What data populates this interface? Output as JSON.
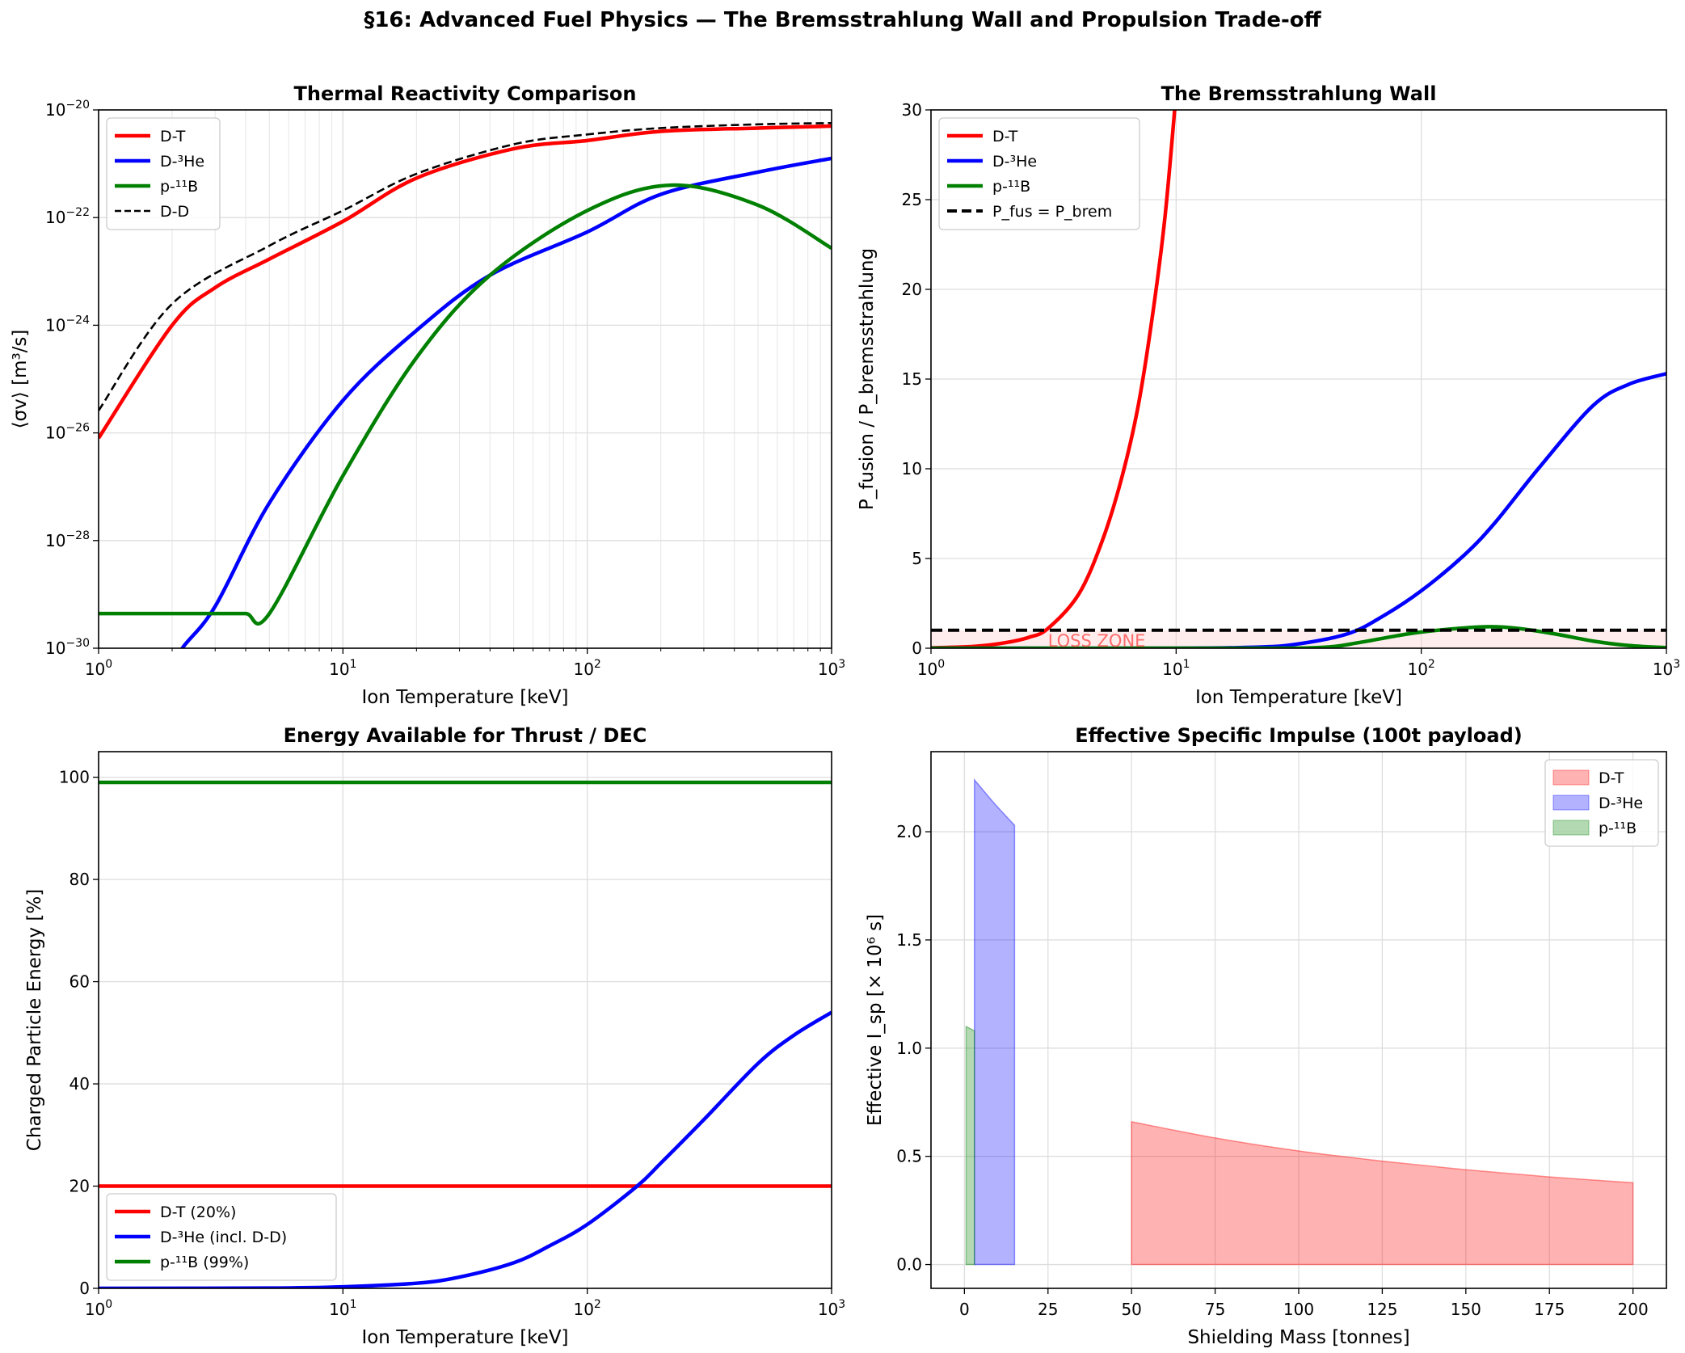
{
  "suptitle": "§16: Advanced Fuel Physics — The Bremsstrahlung Wall and Propulsion Trade-off",
  "chart_data": [
    {
      "type": "line",
      "title": "Thermal Reactivity Comparison",
      "xlabel": "Ion Temperature [keV]",
      "ylabel": "⟨σv⟩ [m³/s]",
      "xscale": "log",
      "yscale": "log",
      "xlim": [
        1,
        1000
      ],
      "ylim": [
        1e-30,
        1e-20
      ],
      "xticks": [
        1,
        10,
        100,
        1000
      ],
      "xticklabels": [
        "10^0",
        "10^1",
        "10^2",
        "10^3"
      ],
      "yticks": [
        1e-30,
        1e-28,
        1e-26,
        1e-24,
        1e-22,
        1e-20
      ],
      "yticklabels": [
        "10^−30",
        "10^−28",
        "10^−26",
        "10^−24",
        "10^−22",
        "10^−20"
      ],
      "grid": true,
      "minor_grid": true,
      "legend": "upper-left",
      "series": [
        {
          "name": "D-T",
          "color": "#ff0000",
          "dash": "solid",
          "x": [
            1,
            2,
            3,
            5,
            10,
            20,
            50,
            100,
            200,
            500,
            1000
          ],
          "y": [
            8e-27,
            1e-24,
            5e-24,
            1.7e-23,
            8.5e-23,
            5.4e-22,
            1.9e-21,
            2.7e-21,
            4e-21,
            4.6e-21,
            5e-21
          ]
        },
        {
          "name": "D-³He",
          "color": "#0000ff",
          "dash": "solid",
          "x": [
            1.9,
            2.2,
            3,
            5,
            10,
            20,
            40,
            100,
            200,
            500,
            1000
          ],
          "y": [
            3e-31,
            1e-30,
            6e-30,
            5e-28,
            4e-26,
            8e-25,
            8.5e-24,
            5.4e-23,
            2.7e-22,
            7e-22,
            1.26e-21
          ]
        },
        {
          "name": "p-¹¹B",
          "color": "#008000",
          "dash": "solid",
          "x": [
            1,
            2,
            3,
            4,
            5,
            10,
            20,
            40,
            100,
            220,
            500,
            1000
          ],
          "y": [
            4.4e-30,
            4.4e-30,
            4.4e-30,
            4.4e-30,
            4.4e-30,
            1.6e-27,
            2.5e-25,
            8.5e-24,
            1.35e-22,
            4e-22,
            1.7e-22,
            2.7e-23
          ]
        },
        {
          "name": "D-D",
          "color": "#000000",
          "dash": "dashed",
          "x": [
            1,
            2,
            5,
            10,
            20,
            50,
            100,
            200,
            500,
            1000
          ],
          "y": [
            2.6e-26,
            2.5e-24,
            3e-23,
            1.35e-22,
            6.5e-22,
            2.3e-21,
            3.5e-21,
            4.6e-21,
            5.4e-21,
            5.7e-21
          ]
        }
      ]
    },
    {
      "type": "line",
      "title": "The Bremsstrahlung Wall",
      "xlabel": "Ion Temperature [keV]",
      "ylabel": "P_fusion / P_bremsstrahlung",
      "xscale": "log",
      "yscale": "linear",
      "xlim": [
        1,
        1000
      ],
      "ylim": [
        0,
        30
      ],
      "xticks": [
        1,
        10,
        100,
        1000
      ],
      "xticklabels": [
        "10^0",
        "10^1",
        "10^2",
        "10^3"
      ],
      "yticks": [
        0,
        5,
        10,
        15,
        20,
        25,
        30
      ],
      "yticklabels": [
        "0",
        "5",
        "10",
        "15",
        "20",
        "25",
        "30"
      ],
      "grid": true,
      "minor_grid": false,
      "legend": "upper-left",
      "fill": {
        "x": [
          1,
          1000
        ],
        "y": [
          0,
          1
        ],
        "color": "#ffcccc"
      },
      "annotations": [
        {
          "text": "LOSS ZONE",
          "x": 3,
          "y": 0.45,
          "color": "#ff5555"
        }
      ],
      "series": [
        {
          "name": "D-T",
          "color": "#ff0000",
          "dash": "solid",
          "x": [
            1,
            1.5,
            2,
            2.5,
            3,
            4,
            5,
            6,
            7,
            8,
            9,
            10,
            10.5
          ],
          "y": [
            0.02,
            0.1,
            0.3,
            0.6,
            1.1,
            3,
            6,
            9.5,
            13.5,
            18.5,
            24,
            31,
            35
          ]
        },
        {
          "name": "D-³He",
          "color": "#0000ff",
          "dash": "solid",
          "x": [
            1,
            10,
            20,
            30,
            50,
            70,
            100,
            150,
            200,
            300,
            500,
            700,
            1000
          ],
          "y": [
            0,
            0,
            0.05,
            0.2,
            0.8,
            1.8,
            3.2,
            5.2,
            7,
            10,
            13.5,
            14.7,
            15.3
          ]
        },
        {
          "name": "p-¹¹B",
          "color": "#008000",
          "dash": "solid",
          "x": [
            1,
            20,
            40,
            55,
            80,
            100,
            140,
            190,
            250,
            350,
            500,
            700,
            1000
          ],
          "y": [
            0,
            0,
            0.05,
            0.3,
            0.7,
            0.9,
            1.1,
            1.2,
            1.1,
            0.8,
            0.4,
            0.15,
            0.03
          ]
        },
        {
          "name": "P_fus = P_brem",
          "color": "#000000",
          "dash": "dashed",
          "x": [
            1,
            1000
          ],
          "y": [
            1,
            1
          ]
        }
      ]
    },
    {
      "type": "line",
      "title": "Energy Available for Thrust / DEC",
      "xlabel": "Ion Temperature [keV]",
      "ylabel": "Charged Particle Energy [%]",
      "xscale": "log",
      "yscale": "linear",
      "xlim": [
        1,
        1000
      ],
      "ylim": [
        0,
        105
      ],
      "xticks": [
        1,
        10,
        100,
        1000
      ],
      "xticklabels": [
        "10^0",
        "10^1",
        "10^2",
        "10^3"
      ],
      "yticks": [
        0,
        20,
        40,
        60,
        80,
        100
      ],
      "yticklabels": [
        "0",
        "20",
        "40",
        "60",
        "80",
        "100"
      ],
      "grid": true,
      "minor_grid": false,
      "legend": "lower-left",
      "series": [
        {
          "name": "D-T (20%)",
          "color": "#ff0000",
          "dash": "solid",
          "x": [
            1,
            1000
          ],
          "y": [
            20,
            20
          ]
        },
        {
          "name": "D-³He (incl. D-D)",
          "color": "#0000ff",
          "dash": "solid",
          "x": [
            1,
            5,
            10,
            20,
            30,
            50,
            70,
            100,
            160,
            200,
            300,
            500,
            700,
            1000
          ],
          "y": [
            0,
            0.05,
            0.3,
            1,
            2.2,
            5,
            8.3,
            12.5,
            20,
            24.5,
            33,
            44,
            49.5,
            54
          ]
        },
        {
          "name": "p-¹¹B (99%)",
          "color": "#008000",
          "dash": "solid",
          "x": [
            1,
            1000
          ],
          "y": [
            99,
            99
          ]
        }
      ]
    },
    {
      "type": "area",
      "title": "Effective Specific Impulse (100t payload)",
      "xlabel": "Shielding Mass [tonnes]",
      "ylabel": "Effective I_sp [× 10⁶ s]",
      "xscale": "linear",
      "yscale": "linear",
      "xlim": [
        -10,
        210
      ],
      "ylim": [
        -0.11,
        2.37
      ],
      "xticks": [
        0,
        25,
        50,
        75,
        100,
        125,
        150,
        175,
        200
      ],
      "xticklabels": [
        "0",
        "25",
        "50",
        "75",
        "100",
        "125",
        "150",
        "175",
        "200"
      ],
      "yticks": [
        0,
        0.5,
        1,
        1.5,
        2
      ],
      "yticklabels": [
        "0.0",
        "0.5",
        "1.0",
        "1.5",
        "2.0"
      ],
      "grid": true,
      "minor_grid": false,
      "legend": "upper-right",
      "series": [
        {
          "name": "D-T",
          "color": "#ff0000",
          "alpha": 0.3,
          "x": [
            50,
            75,
            100,
            125,
            150,
            175,
            200
          ],
          "y": [
            0.66,
            0.585,
            0.525,
            0.478,
            0.438,
            0.405,
            0.378
          ]
        },
        {
          "name": "D-³He",
          "color": "#0000ff",
          "alpha": 0.3,
          "x": [
            3,
            9,
            15
          ],
          "y": [
            2.24,
            2.13,
            2.03
          ]
        },
        {
          "name": "p-¹¹B",
          "color": "#008000",
          "alpha": 0.3,
          "x": [
            0.5,
            3
          ],
          "y": [
            1.1,
            1.08
          ]
        }
      ]
    }
  ]
}
